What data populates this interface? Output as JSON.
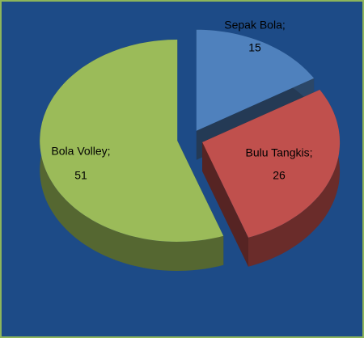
{
  "chart_data": {
    "type": "pie3d",
    "categories": [
      "Sepak Bola;",
      "Bulu Tangkis;",
      "Bola Volley;"
    ],
    "values": [
      15,
      26,
      51
    ],
    "colors": [
      "#4f81bd",
      "#c0504d",
      "#9bbb59"
    ]
  }
}
